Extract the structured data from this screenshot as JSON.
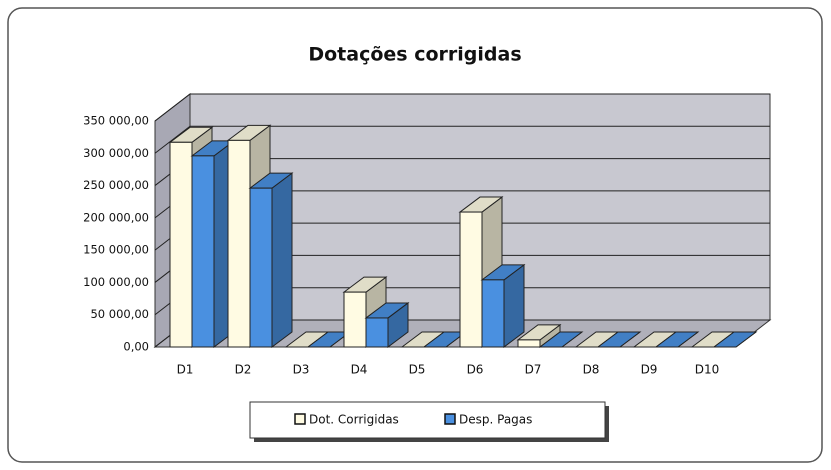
{
  "chart_data": {
    "type": "bar3d",
    "title": "Dotações corrigidas",
    "categories": [
      "D1",
      "D2",
      "D3",
      "D4",
      "D5",
      "D6",
      "D7",
      "D8",
      "D9",
      "D10"
    ],
    "series": [
      {
        "name": "Dot. Corrigidas",
        "color": "#fffbe3",
        "values": [
          317000,
          320000,
          0,
          85000,
          0,
          209000,
          11000,
          0,
          0,
          0
        ]
      },
      {
        "name": "Desp. Pagas",
        "color": "#4a90e0",
        "values": [
          296000,
          246000,
          0,
          45000,
          0,
          104000,
          0,
          0,
          0,
          0
        ]
      }
    ],
    "ylim": [
      0,
      350000
    ],
    "yticks": [
      {
        "value": 0,
        "label": "0,00"
      },
      {
        "value": 50000,
        "label": "50 000,00"
      },
      {
        "value": 100000,
        "label": "100 000,00"
      },
      {
        "value": 150000,
        "label": "150 000,00"
      },
      {
        "value": 200000,
        "label": "200 000,00"
      },
      {
        "value": 250000,
        "label": "250 000,00"
      },
      {
        "value": 300000,
        "label": "300 000,00"
      },
      {
        "value": 350000,
        "label": "350 000,00"
      }
    ],
    "grid": true,
    "legend": "bottom"
  }
}
